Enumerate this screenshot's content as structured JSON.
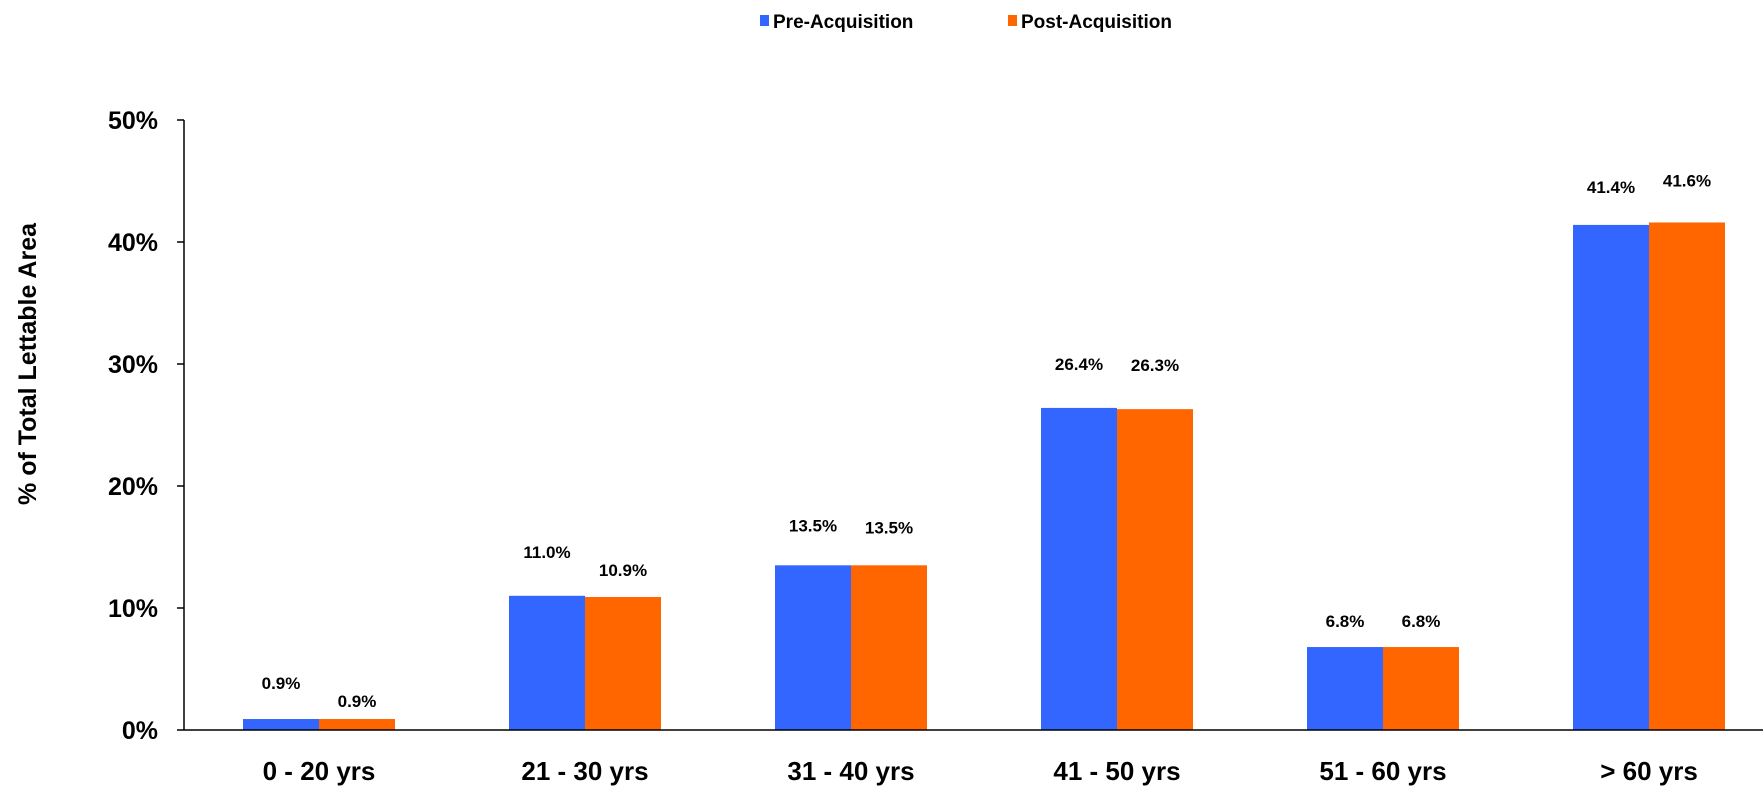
{
  "chart_data": {
    "type": "bar",
    "categories": [
      "0 - 20 yrs",
      "21 - 30 yrs",
      "31 - 40 yrs",
      "41 - 50 yrs",
      "51 - 60 yrs",
      "> 60 yrs"
    ],
    "series": [
      {
        "name": "Pre-Acquisition",
        "color": "#3366FF",
        "values": [
          0.9,
          11.0,
          13.5,
          26.4,
          6.8,
          41.4
        ],
        "labels": [
          "0.9%",
          "11.0%",
          "13.5%",
          "26.4%",
          "6.8%",
          "41.4%"
        ]
      },
      {
        "name": "Post-Acquisition",
        "color": "#FF6600",
        "values": [
          0.9,
          10.9,
          13.5,
          26.3,
          6.8,
          41.6
        ],
        "labels": [
          "0.9%",
          "10.9%",
          "13.5%",
          "26.3%",
          "6.8%",
          "41.6%"
        ]
      }
    ],
    "title": "",
    "xlabel": "",
    "ylabel": "% of Total Lettable Area",
    "ylim": [
      0,
      50
    ],
    "yticks": [
      0,
      10,
      20,
      30,
      40,
      50
    ],
    "ytick_labels": [
      "0%",
      "10%",
      "20%",
      "30%",
      "40%",
      "50%"
    ],
    "grid": false,
    "legend_position": "top-center"
  }
}
